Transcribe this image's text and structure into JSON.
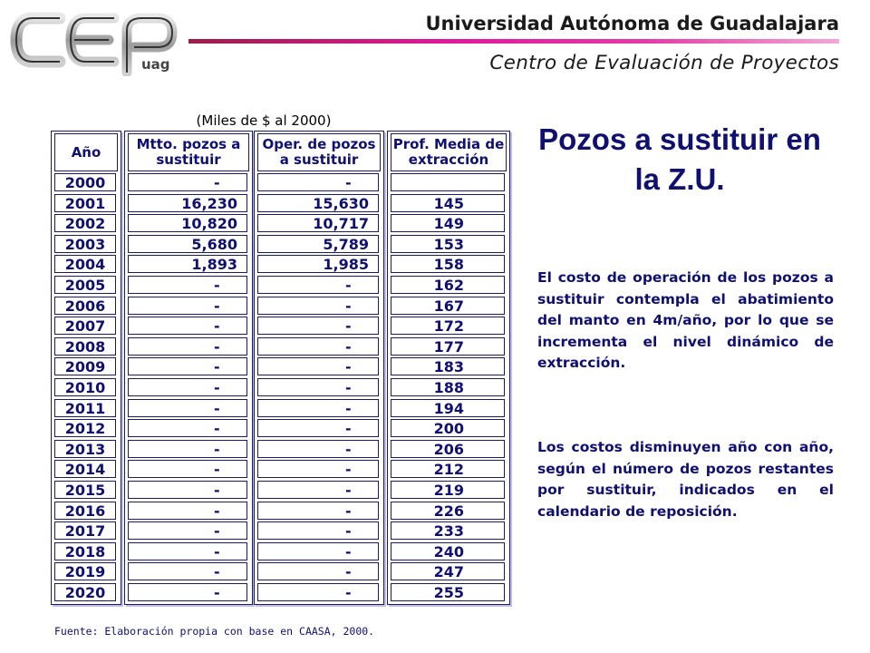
{
  "header": {
    "logo_text": "CEP",
    "logo_sub": "uag",
    "university": "Universidad Autónoma de Guadalajara",
    "center": "Centro de Evaluación de Proyectos"
  },
  "table": {
    "unit_note": "(Miles de $ al 2000)",
    "headers": {
      "year": "Año",
      "mtto": "Mtto. pozos a sustituir",
      "oper": "Oper. de pozos a sustituir",
      "prof": "Prof. Media de extracción"
    },
    "rows": [
      {
        "year": "2000",
        "mtto": "-",
        "oper": "-",
        "prof": ""
      },
      {
        "year": "2001",
        "mtto": "16,230",
        "oper": "15,630",
        "prof": "145"
      },
      {
        "year": "2002",
        "mtto": "10,820",
        "oper": "10,717",
        "prof": "149"
      },
      {
        "year": "2003",
        "mtto": "5,680",
        "oper": "5,789",
        "prof": "153"
      },
      {
        "year": "2004",
        "mtto": "1,893",
        "oper": "1,985",
        "prof": "158"
      },
      {
        "year": "2005",
        "mtto": "-",
        "oper": "-",
        "prof": "162"
      },
      {
        "year": "2006",
        "mtto": "-",
        "oper": "-",
        "prof": "167"
      },
      {
        "year": "2007",
        "mtto": "-",
        "oper": "-",
        "prof": "172"
      },
      {
        "year": "2008",
        "mtto": "-",
        "oper": "-",
        "prof": "177"
      },
      {
        "year": "2009",
        "mtto": "-",
        "oper": "-",
        "prof": "183"
      },
      {
        "year": "2010",
        "mtto": "-",
        "oper": "-",
        "prof": "188"
      },
      {
        "year": "2011",
        "mtto": "-",
        "oper": "-",
        "prof": "194"
      },
      {
        "year": "2012",
        "mtto": "-",
        "oper": "-",
        "prof": "200"
      },
      {
        "year": "2013",
        "mtto": "-",
        "oper": "-",
        "prof": "206"
      },
      {
        "year": "2014",
        "mtto": "-",
        "oper": "-",
        "prof": "212"
      },
      {
        "year": "2015",
        "mtto": "-",
        "oper": "-",
        "prof": "219"
      },
      {
        "year": "2016",
        "mtto": "-",
        "oper": "-",
        "prof": "226"
      },
      {
        "year": "2017",
        "mtto": "-",
        "oper": "-",
        "prof": "233"
      },
      {
        "year": "2018",
        "mtto": "-",
        "oper": "-",
        "prof": "240"
      },
      {
        "year": "2019",
        "mtto": "-",
        "oper": "-",
        "prof": "247"
      },
      {
        "year": "2020",
        "mtto": "-",
        "oper": "-",
        "prof": "255"
      }
    ]
  },
  "content": {
    "title": "Pozos a sustituir en la Z.U.",
    "paragraph1": "El costo de operación de los pozos a sustituir contempla el abatimiento del manto en 4m/año, por lo que se incrementa el nivel dinámico de extracción.",
    "paragraph2": "Los costos disminuyen año con año, según el número de pozos restantes por sustituir, indicados en el calendario de reposición."
  },
  "footer": {
    "source": "Fuente: Elaboración propia con base en CAASA, 2000."
  },
  "colors": {
    "text_navy": "#101070",
    "border": "#1a1a6a",
    "header_bar_accent": "#e0199a"
  }
}
